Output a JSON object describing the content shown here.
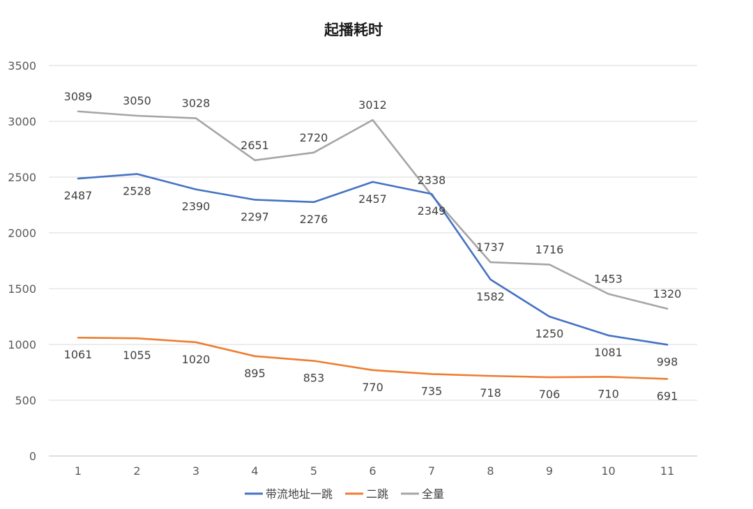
{
  "chart_data": {
    "type": "line",
    "title": "起播耗时",
    "categories": [
      "1",
      "2",
      "3",
      "4",
      "5",
      "6",
      "7",
      "8",
      "9",
      "10",
      "11"
    ],
    "ylim": [
      0,
      3500
    ],
    "yticks": [
      0,
      500,
      1000,
      1500,
      2000,
      2500,
      3000,
      3500
    ],
    "grid": true,
    "legend_position": "bottom",
    "series": [
      {
        "name": "带流地址一跳",
        "color": "#4472c4",
        "label_position": "below",
        "values": [
          2487,
          2528,
          2390,
          2297,
          2276,
          2457,
          2349,
          1582,
          1250,
          1081,
          998
        ]
      },
      {
        "name": "二跳",
        "color": "#ed7d31",
        "label_position": "below",
        "values": [
          1061,
          1055,
          1020,
          895,
          853,
          770,
          735,
          718,
          706,
          710,
          691
        ]
      },
      {
        "name": "全量",
        "color": "#a5a5a5",
        "label_position": "above",
        "values": [
          3089,
          3050,
          3028,
          2651,
          2720,
          3012,
          2338,
          1737,
          1716,
          1453,
          1320
        ]
      }
    ]
  }
}
